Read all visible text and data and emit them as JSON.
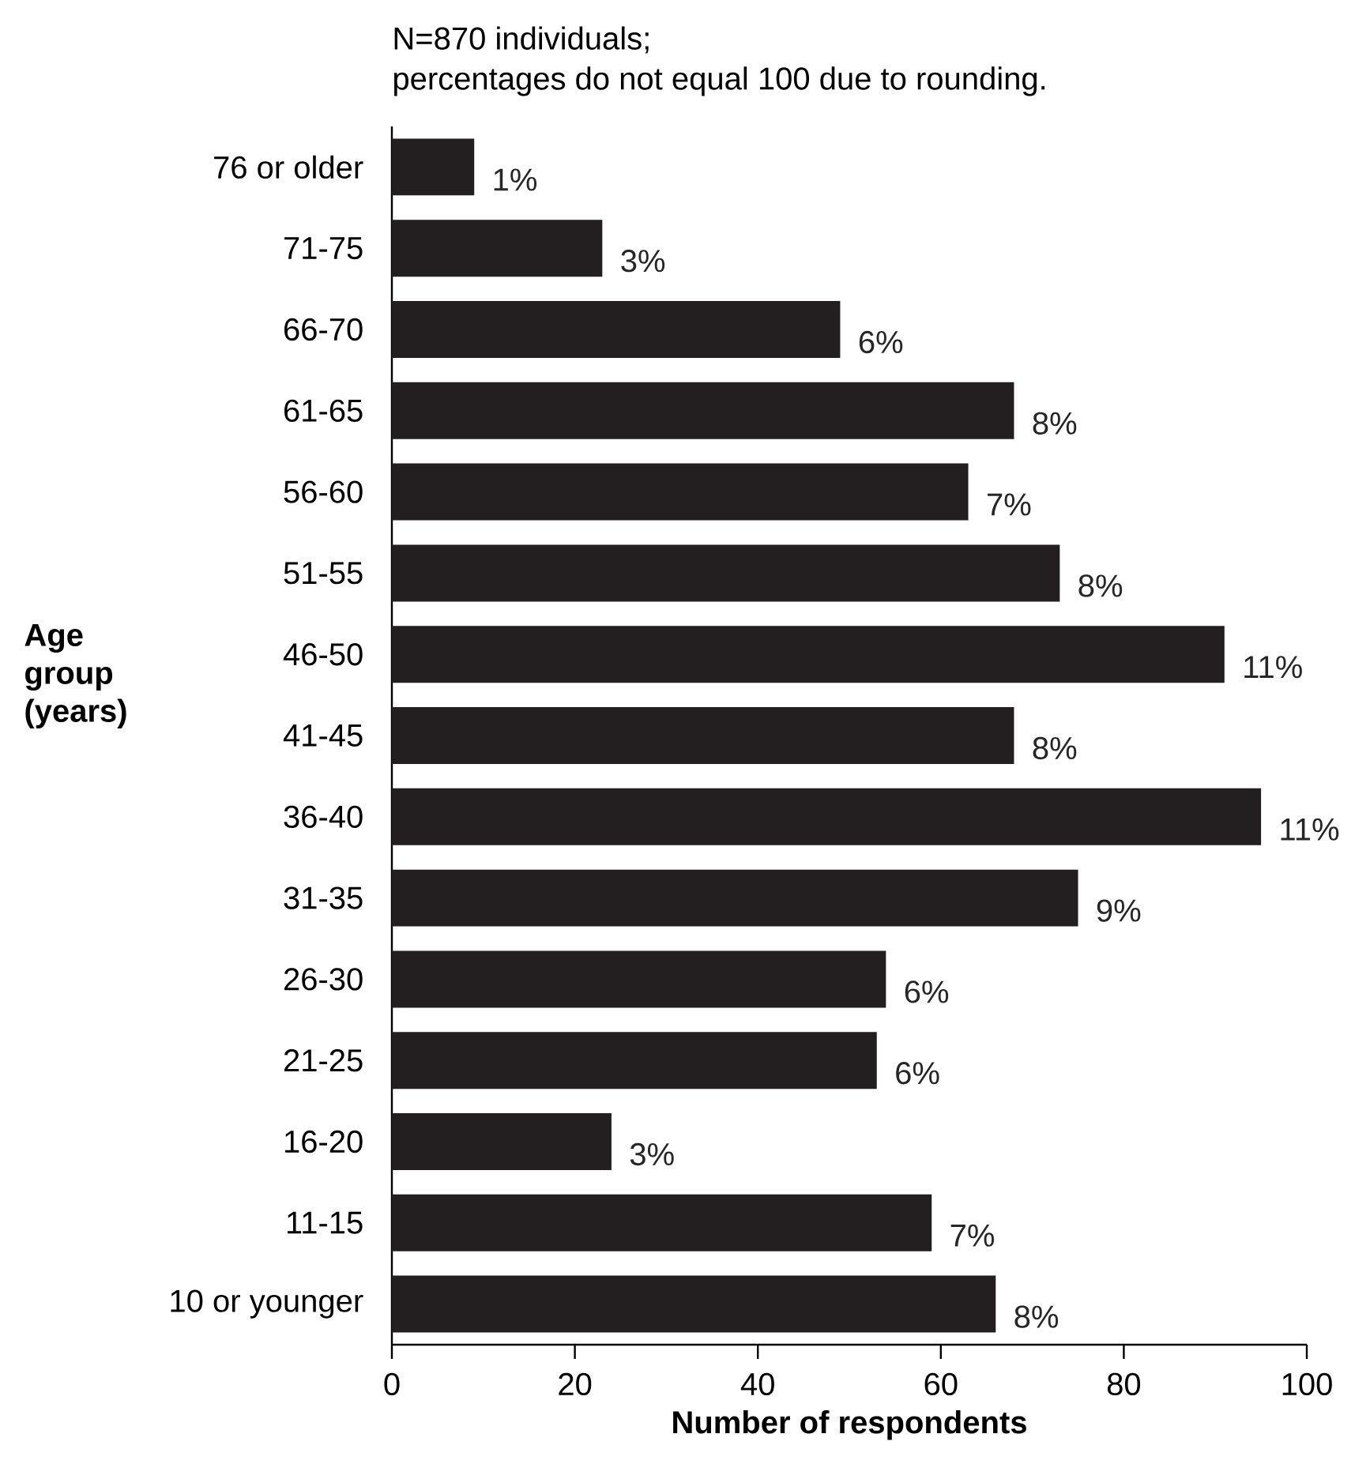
{
  "chart_data": {
    "type": "bar",
    "orientation": "horizontal",
    "title": "N=870 individuals;",
    "subtitle": "percentages do not equal 100 due to rounding.",
    "xlabel": "Number of respondents",
    "ylabel": "Age group (years)",
    "categories": [
      "76 or older",
      "71-75",
      "66-70",
      "61-65",
      "56-60",
      "51-55",
      "46-50",
      "41-45",
      "36-40",
      "31-35",
      "26-30",
      "21-25",
      "16-20",
      "11-15",
      "10 or younger"
    ],
    "values": [
      9,
      23,
      49,
      68,
      63,
      73,
      91,
      68,
      95,
      75,
      54,
      53,
      24,
      59,
      66
    ],
    "annotations": [
      {
        "text": "1%",
        "x": 9,
        "y": "76 or older"
      },
      {
        "text": "3%",
        "x": 23,
        "y": "71-75"
      },
      {
        "text": "6%",
        "x": 49,
        "y": "66-70"
      },
      {
        "text": "8%",
        "x": 68,
        "y": "61-65"
      },
      {
        "text": "7%",
        "x": 63,
        "y": "56-60"
      },
      {
        "text": "8%",
        "x": 73,
        "y": "51-55"
      },
      {
        "text": "11%",
        "x": 91,
        "y": "46-50"
      },
      {
        "text": "8%",
        "x": 68,
        "y": "41-45"
      },
      {
        "text": "11%",
        "x": 95,
        "y": "36-40"
      },
      {
        "text": "9%",
        "x": 75,
        "y": "31-35"
      },
      {
        "text": "6%",
        "x": 54,
        "y": "26-30"
      },
      {
        "text": "6%",
        "x": 53,
        "y": "21-25"
      },
      {
        "text": "3%",
        "x": 24,
        "y": "16-20"
      },
      {
        "text": "7%",
        "x": 59,
        "y": "11-15"
      },
      {
        "text": "8%",
        "x": 66,
        "y": "10 or younger"
      }
    ],
    "color": "#231f20",
    "xlim": [
      0,
      100
    ],
    "xticks": [
      0,
      20,
      40,
      60,
      80,
      100
    ]
  }
}
